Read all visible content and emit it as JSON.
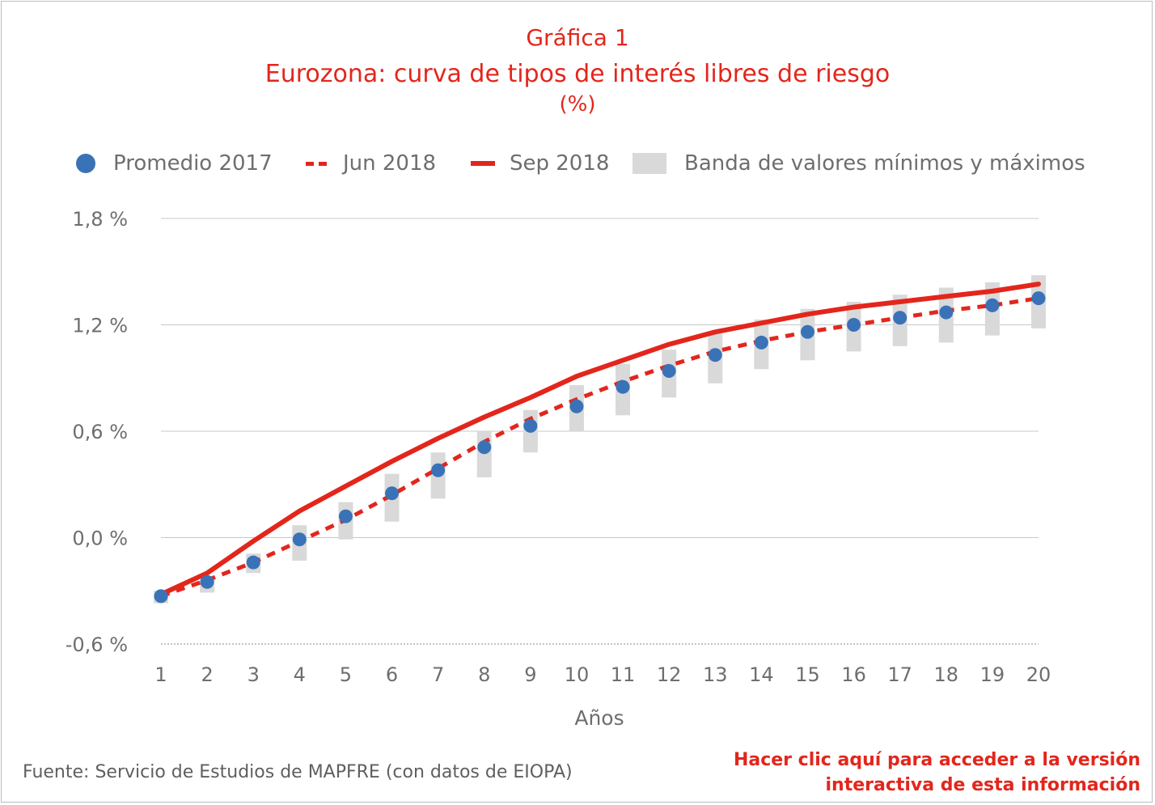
{
  "header": {
    "title_line1": "Gráfica 1",
    "title_line2": "Eurozona: curva de tipos de interés libres de riesgo",
    "title_line3": "(%)"
  },
  "legend": {
    "promedio": "Promedio 2017",
    "jun": "Jun 2018",
    "sep": "Sep 2018",
    "banda": "Banda de valores mínimos y máximos"
  },
  "footer": {
    "source": "Fuente: Servicio de Estudios de MAPFRE (con datos de EIOPA)",
    "link_line1": "Hacer clic aquí para acceder a la versión",
    "link_line2": "interactiva de esta información"
  },
  "colors": {
    "accent": "#e3261c",
    "dot": "#3a72b7",
    "band": "#d9d9d9",
    "grid": "#c8c8c8",
    "text": "#6e6e6e"
  },
  "chart_data": {
    "type": "line",
    "xlabel": "Años",
    "ylabel": "",
    "x": [
      1,
      2,
      3,
      4,
      5,
      6,
      7,
      8,
      9,
      10,
      11,
      12,
      13,
      14,
      15,
      16,
      17,
      18,
      19,
      20
    ],
    "ylim": [
      -0.6,
      1.8
    ],
    "yticks": [
      -0.6,
      0.0,
      0.6,
      1.2,
      1.8
    ],
    "ytick_labels": [
      "-0,6 %",
      "0,0 %",
      "0,6 %",
      "1,2 %",
      "1,8 %"
    ],
    "grid": true,
    "legend_position": "top",
    "series": [
      {
        "name": "Promedio 2017",
        "kind": "scatter",
        "values": [
          -0.33,
          -0.25,
          -0.14,
          -0.01,
          0.12,
          0.25,
          0.38,
          0.51,
          0.63,
          0.74,
          0.85,
          0.94,
          1.03,
          1.1,
          1.16,
          1.2,
          1.24,
          1.27,
          1.31,
          1.35
        ]
      },
      {
        "name": "Jun 2018",
        "kind": "dashed",
        "values": [
          -0.33,
          -0.24,
          -0.14,
          -0.02,
          0.1,
          0.24,
          0.39,
          0.54,
          0.67,
          0.78,
          0.88,
          0.97,
          1.05,
          1.11,
          1.16,
          1.2,
          1.24,
          1.28,
          1.31,
          1.35
        ]
      },
      {
        "name": "Sep 2018",
        "kind": "solid",
        "values": [
          -0.32,
          -0.2,
          -0.02,
          0.15,
          0.29,
          0.43,
          0.56,
          0.68,
          0.79,
          0.91,
          1.0,
          1.09,
          1.16,
          1.21,
          1.26,
          1.3,
          1.33,
          1.36,
          1.39,
          1.43
        ]
      },
      {
        "name": "Banda de valores mínimos y máximos",
        "kind": "band",
        "min": [
          -0.37,
          -0.31,
          -0.2,
          -0.13,
          -0.01,
          0.09,
          0.22,
          0.34,
          0.48,
          0.6,
          0.69,
          0.79,
          0.87,
          0.95,
          1.0,
          1.05,
          1.08,
          1.1,
          1.14,
          1.18
        ],
        "max": [
          -0.3,
          -0.22,
          -0.09,
          0.07,
          0.2,
          0.36,
          0.48,
          0.6,
          0.72,
          0.86,
          0.98,
          1.06,
          1.15,
          1.23,
          1.29,
          1.33,
          1.37,
          1.41,
          1.44,
          1.48
        ]
      }
    ]
  }
}
